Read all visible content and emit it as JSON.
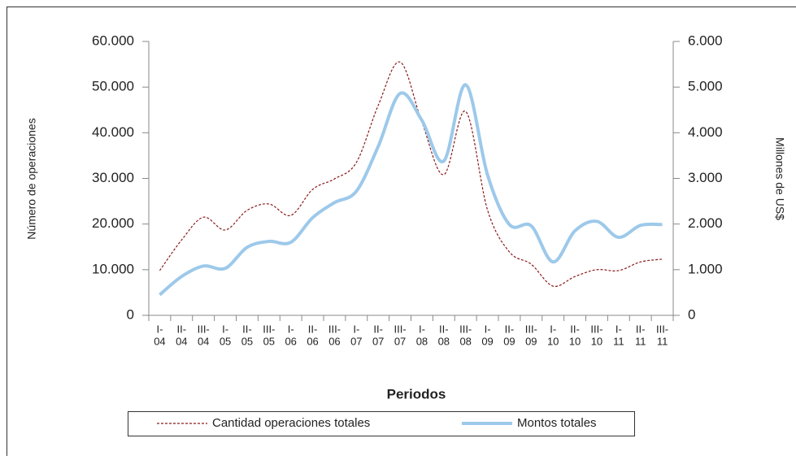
{
  "chart_data": {
    "type": "line",
    "x_label": "Periodos",
    "y_label": "Número de operaciones",
    "y2_label": "Millones de US$",
    "categories": [
      [
        "I-",
        "04"
      ],
      [
        "II-",
        "04"
      ],
      [
        "III-",
        "04"
      ],
      [
        "I-",
        "05"
      ],
      [
        "II-",
        "05"
      ],
      [
        "III-",
        "05"
      ],
      [
        "I-",
        "06"
      ],
      [
        "II-",
        "06"
      ],
      [
        "III-",
        "06"
      ],
      [
        "I-",
        "07"
      ],
      [
        "II-",
        "07"
      ],
      [
        "III-",
        "07"
      ],
      [
        "I-",
        "08"
      ],
      [
        "II-",
        "08"
      ],
      [
        "III-",
        "08"
      ],
      [
        "I-",
        "09"
      ],
      [
        "II-",
        "09"
      ],
      [
        "III-",
        "09"
      ],
      [
        "I-",
        "10"
      ],
      [
        "II-",
        "10"
      ],
      [
        "III-",
        "10"
      ],
      [
        "I-",
        "11"
      ],
      [
        "II-",
        "11"
      ],
      [
        "III-",
        "11"
      ]
    ],
    "series": [
      {
        "name": "Cantidad operaciones totales",
        "color": "#8b1a1a",
        "dashed": true,
        "values": [
          9800,
          16500,
          21500,
          18700,
          23000,
          24400,
          21900,
          27600,
          29900,
          33500,
          46000,
          55500,
          42300,
          30800,
          44700,
          23100,
          13900,
          11200,
          6400,
          8500,
          10000,
          9800,
          11700,
          12300
        ]
      },
      {
        "name": "Montos totales",
        "color": "#9dc9ea",
        "axis": "y2",
        "values": [
          450,
          850,
          1080,
          1030,
          1490,
          1620,
          1600,
          2140,
          2470,
          2720,
          3700,
          4860,
          4270,
          3380,
          5050,
          3080,
          1990,
          1960,
          1170,
          1850,
          2060,
          1710,
          1970,
          1990
        ]
      }
    ],
    "ylim": [
      0,
      60000
    ],
    "yticks": [
      0,
      {
        "value": 10000,
        "label": "10.000"
      },
      {
        "value": 20000,
        "label": "20.000"
      },
      {
        "value": 30000,
        "label": "30.000"
      },
      {
        "value": 40000,
        "label": "40.000"
      },
      {
        "value": 50000,
        "label": "50.000"
      },
      {
        "value": 60000,
        "label": "60.000"
      }
    ],
    "y2lim": [
      0,
      6000
    ],
    "y2ticks": [
      0,
      {
        "value": 1000,
        "label": "1.000"
      },
      {
        "value": 2000,
        "label": "2.000"
      },
      {
        "value": 3000,
        "label": "3.000"
      },
      {
        "value": 4000,
        "label": "4.000"
      },
      {
        "value": 5000,
        "label": "5.000"
      },
      {
        "value": 6000,
        "label": "6.000"
      }
    ]
  }
}
